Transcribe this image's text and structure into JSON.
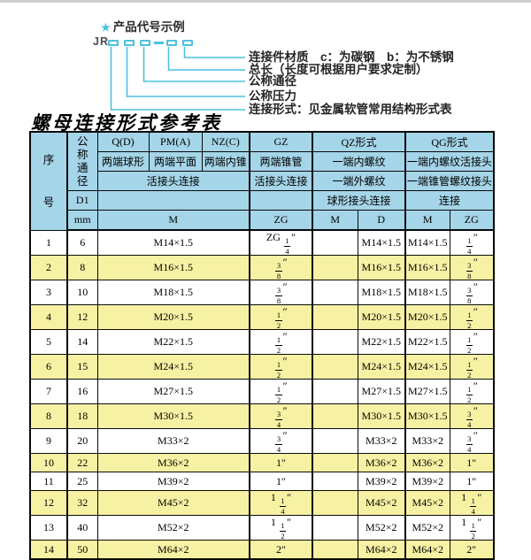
{
  "diagram": {
    "star_char": "★",
    "title": "产品代号示例",
    "code_prefix": "JR",
    "labels": [
      "连接件材质　c：为碳钢　b：为不锈钢",
      "总长（长度可根据用户要求定制）",
      "公称通径",
      "公称压力",
      "连接形式：见金属软管常用结构形式表"
    ]
  },
  "table": {
    "title": "螺母连接形式参考表",
    "header": {
      "seq": "序号",
      "nominal_diameter": "公称通径",
      "d1": "D1",
      "unit": "mm",
      "groups": {
        "q": "Q(D)",
        "pm": "PM(A)",
        "nz": "NZ(C)",
        "gz": "GZ",
        "qz": "QZ形式",
        "qg": "QG形式"
      },
      "desc_row": {
        "q": "两端球形",
        "pm": "两端平面",
        "nz": "两端内锥",
        "gz": "两端锥管",
        "qz": "一端内螺纹",
        "qg": "一端内螺纹活接头"
      },
      "conn_row": {
        "left": "活接头连接",
        "gz": "活接头连接",
        "qz": "一端外螺纹",
        "qg": "一端锥管螺纹接头"
      },
      "d1_row": {
        "qz": "球形接头连接",
        "qg": "连接"
      },
      "unit_row": {
        "m1": "M",
        "zg1": "ZG",
        "m2": "M",
        "d": "D",
        "m3": "M",
        "zg2": "ZG"
      }
    },
    "rows": [
      {
        "no": "1",
        "dn": "6",
        "m": "M14×1.5",
        "zg": "ZG 1/4″",
        "qz_m": "",
        "qz_d": "M14×1.5",
        "qg_m": "M14×1.5",
        "qg_zg": "1/4″"
      },
      {
        "no": "2",
        "dn": "8",
        "m": "M16×1.5",
        "zg": "3/8″",
        "qz_m": "",
        "qz_d": "M16×1.5",
        "qg_m": "M16×1.5",
        "qg_zg": "3/8″"
      },
      {
        "no": "3",
        "dn": "10",
        "m": "M18×1.5",
        "zg": "3/8″",
        "qz_m": "",
        "qz_d": "M18×1.5",
        "qg_m": "M18×1.5",
        "qg_zg": "3/8″"
      },
      {
        "no": "4",
        "dn": "12",
        "m": "M20×1.5",
        "zg": "1/2″",
        "qz_m": "",
        "qz_d": "M20×1.5",
        "qg_m": "M20×1.5",
        "qg_zg": "1/2″"
      },
      {
        "no": "5",
        "dn": "14",
        "m": "M22×1.5",
        "zg": "1/2″",
        "qz_m": "",
        "qz_d": "M22×1.5",
        "qg_m": "M22×1.5",
        "qg_zg": "1/2″"
      },
      {
        "no": "6",
        "dn": "15",
        "m": "M24×1.5",
        "zg": "1/2″",
        "qz_m": "",
        "qz_d": "M24×1.5",
        "qg_m": "M24×1.5",
        "qg_zg": "1/2″"
      },
      {
        "no": "7",
        "dn": "16",
        "m": "M27×1.5",
        "zg": "1/2″",
        "qz_m": "",
        "qz_d": "M27×1.5",
        "qg_m": "M27×1.5",
        "qg_zg": "1/2″"
      },
      {
        "no": "8",
        "dn": "18",
        "m": "M30×1.5",
        "zg": "3/4″",
        "qz_m": "",
        "qz_d": "M30×1.5",
        "qg_m": "M30×1.5",
        "qg_zg": "3/4″"
      },
      {
        "no": "9",
        "dn": "20",
        "m": "M33×2",
        "zg": "3/4″",
        "qz_m": "",
        "qz_d": "M33×2",
        "qg_m": "M33×2",
        "qg_zg": "3/4″"
      },
      {
        "no": "10",
        "dn": "22",
        "m": "M36×2",
        "zg": "1″",
        "qz_m": "",
        "qz_d": "M36×2",
        "qg_m": "M36×2",
        "qg_zg": "1″"
      },
      {
        "no": "11",
        "dn": "25",
        "m": "M39×2",
        "zg": "1″",
        "qz_m": "",
        "qz_d": "M39×2",
        "qg_m": "M39×2",
        "qg_zg": "1″"
      },
      {
        "no": "12",
        "dn": "32",
        "m": "M45×2",
        "zg": "1 1/4″",
        "qz_m": "",
        "qz_d": "M45×2",
        "qg_m": "M45×2",
        "qg_zg": "1 1/4″"
      },
      {
        "no": "13",
        "dn": "40",
        "m": "M52×2",
        "zg": "1 1/2″",
        "qz_m": "",
        "qz_d": "M52×2",
        "qg_m": "M52×2",
        "qg_zg": "1 1/2″"
      },
      {
        "no": "14",
        "dn": "50",
        "m": "M64×2",
        "zg": "2″",
        "qz_m": "",
        "qz_d": "M64×2",
        "qg_m": "M64×2",
        "qg_zg": "2″"
      }
    ]
  },
  "colors": {
    "accent": "#4cc2de",
    "header_bg": "#a5d5e8",
    "row_even_bg": "#f7f2a3",
    "row_odd_bg": "#ffffff",
    "border": "#0a0a0a"
  }
}
